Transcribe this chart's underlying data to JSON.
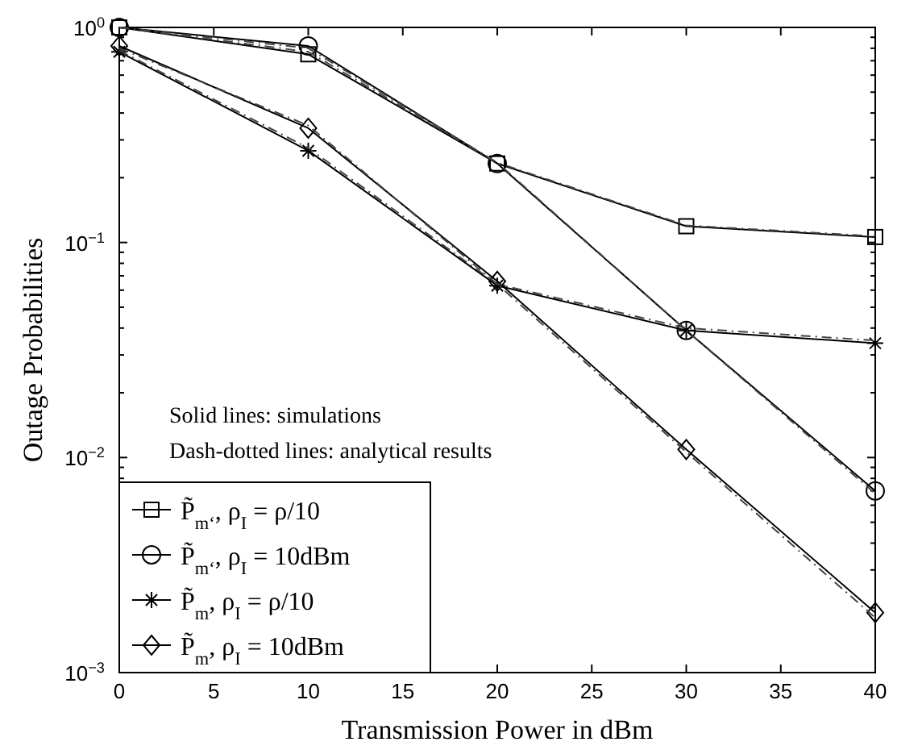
{
  "chart_data": {
    "type": "line",
    "xlabel": "Transmission Power in dBm",
    "ylabel": "Outage Probabilities",
    "x": [
      0,
      10,
      20,
      30,
      40
    ],
    "log": "y",
    "xlim": [
      0,
      40
    ],
    "ylim": [
      0.001,
      1
    ],
    "xticks": [
      0,
      5,
      10,
      15,
      20,
      25,
      30,
      35,
      40
    ],
    "yticks": [
      {
        "value": 0.001,
        "label": "10$^{−3}$"
      },
      {
        "value": 0.002,
        "label": null
      },
      {
        "value": 0.003,
        "label": null
      },
      {
        "value": 0.004,
        "label": null
      },
      {
        "value": 0.005,
        "label": null
      },
      {
        "value": 0.006,
        "label": null
      },
      {
        "value": 0.007,
        "label": null
      },
      {
        "value": 0.008,
        "label": null
      },
      {
        "value": 0.009,
        "label": null
      },
      {
        "value": 0.01,
        "label": "10$^{−2}$"
      },
      {
        "value": 0.02,
        "label": null
      },
      {
        "value": 0.03,
        "label": null
      },
      {
        "value": 0.04,
        "label": null
      },
      {
        "value": 0.05,
        "label": null
      },
      {
        "value": 0.06,
        "label": null
      },
      {
        "value": 0.07,
        "label": null
      },
      {
        "value": 0.08,
        "label": null
      },
      {
        "value": 0.09,
        "label": null
      },
      {
        "value": 0.1,
        "label": "10$^{−1}$"
      },
      {
        "value": 0.2,
        "label": null
      },
      {
        "value": 0.3,
        "label": null
      },
      {
        "value": 0.4,
        "label": null
      },
      {
        "value": 0.5,
        "label": null
      },
      {
        "value": 0.6,
        "label": null
      },
      {
        "value": 0.7,
        "label": null
      },
      {
        "value": 0.8,
        "label": null
      },
      {
        "value": 0.9,
        "label": null
      },
      {
        "value": 1,
        "label": "10$^{0}$"
      }
    ],
    "grid": false,
    "legend": "bottom left",
    "annotations": [
      "Solid lines: simulations",
      "Dash-dotted lines: analytical results"
    ],
    "series": [
      {
        "name": "P̃$_{m‘}$, ρ$_{I}$ = ρ/10",
        "color": "#000000",
        "marker": "square",
        "line_style": "solid",
        "values": [
          1.0,
          0.75,
          0.233,
          0.119,
          0.106
        ]
      },
      {
        "name": "P̃$_{m‘}$, ρ$_{I}$ = 10dBm",
        "color": "#000000",
        "marker": "circle",
        "line_style": "solid",
        "values": [
          1.0,
          0.82,
          0.233,
          0.039,
          0.007
        ]
      },
      {
        "name": "P̃$_{m}$, ρ$_{I}$ = ρ/10",
        "color": "#000000",
        "marker": "cross",
        "line_style": "solid",
        "values": [
          0.77,
          0.267,
          0.063,
          0.039,
          0.034
        ]
      },
      {
        "name": "P̃$_{m}$, ρ$_{I}$ = 10dBm",
        "color": "#000000",
        "marker": "diamond",
        "line_style": "solid",
        "values": [
          0.82,
          0.34,
          0.066,
          0.0109,
          0.0019
        ]
      },
      {
        "color": "#444444",
        "marker": "none",
        "line_style": "dashed",
        "values": [
          1.0,
          0.77,
          0.235,
          0.12,
          0.107
        ]
      },
      {
        "color": "#444444",
        "marker": "none",
        "line_style": "dashed",
        "values": [
          1.0,
          0.8,
          0.235,
          0.039,
          0.0068
        ]
      },
      {
        "color": "#444444",
        "marker": "none",
        "line_style": "dashed",
        "values": [
          0.78,
          0.275,
          0.064,
          0.04,
          0.035
        ]
      },
      {
        "color": "#444444",
        "marker": "none",
        "line_style": "dashed",
        "values": [
          0.8,
          0.35,
          0.064,
          0.0106,
          0.0018
        ]
      }
    ]
  }
}
